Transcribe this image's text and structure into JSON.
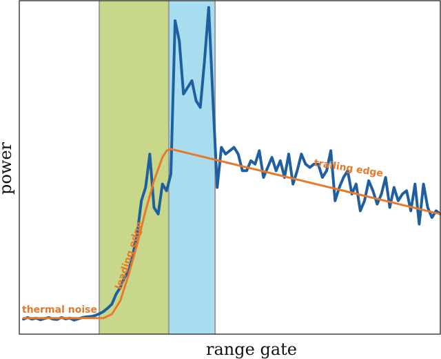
{
  "chart_data": {
    "type": "line",
    "title": "",
    "xlabel": "range gate",
    "ylabel": "power",
    "xlim": [
      0,
      100
    ],
    "ylim": [
      0,
      100
    ],
    "grid": false,
    "ticks": false,
    "bands": [
      {
        "name": "leading-edge-band",
        "x0": 19,
        "x1": 35.5,
        "color": "#c8d88a"
      },
      {
        "name": "peak-band",
        "x0": 35.5,
        "x1": 46.5,
        "color": "#a8dcef"
      }
    ],
    "band_edge_color": "#9a9a9a",
    "series": [
      {
        "name": "waveform",
        "color": "#1f5fa0",
        "x": [
          1,
          2,
          3,
          4,
          5,
          6,
          7,
          8,
          9,
          10,
          11,
          12,
          13,
          14,
          15,
          16,
          17,
          18,
          19,
          20,
          21,
          22,
          23,
          24,
          25,
          26,
          27,
          28,
          29,
          30,
          31,
          32,
          33,
          34,
          35,
          36,
          37,
          38,
          39,
          40,
          41,
          42,
          43,
          44,
          45,
          46,
          47,
          48,
          49,
          50,
          51,
          52,
          53,
          54,
          55,
          56,
          57,
          58,
          59,
          60,
          61,
          62,
          63,
          64,
          65,
          66,
          67,
          68,
          69,
          70,
          71,
          72,
          73,
          74,
          75,
          76,
          77,
          78,
          79,
          80,
          81,
          82,
          83,
          84,
          85,
          86,
          87,
          88,
          89,
          90,
          91,
          92,
          93,
          94,
          95,
          96,
          97,
          98,
          99,
          100
        ],
        "y": [
          4.5,
          5,
          4.5,
          4.8,
          4.3,
          4.7,
          5,
          4.5,
          4.4,
          5,
          4.6,
          4.8,
          4.2,
          4.6,
          5,
          5.2,
          5.3,
          5.6,
          6.1,
          6.8,
          7.8,
          9,
          12,
          14,
          17,
          19,
          24,
          30,
          40,
          44,
          54,
          38,
          36,
          45,
          43,
          48,
          94,
          88,
          72,
          74,
          76,
          70,
          68,
          82,
          98,
          70,
          44,
          56,
          54,
          55,
          56,
          54,
          49,
          49,
          52,
          51,
          55,
          47,
          50,
          53,
          49,
          52,
          47,
          54,
          45,
          49,
          54,
          51,
          50,
          51,
          51,
          47,
          49,
          55,
          40,
          44,
          47,
          49,
          42,
          45,
          37,
          40,
          46,
          43,
          39,
          42,
          47,
          38,
          44,
          40,
          42,
          43,
          37,
          45,
          33,
          45,
          38,
          35,
          37,
          36
        ]
      },
      {
        "name": "model-fit",
        "color": "#e8792b",
        "x": [
          1,
          20,
          22,
          24,
          26,
          28,
          30,
          32,
          34,
          35,
          36,
          100
        ],
        "y": [
          4.8,
          4.8,
          6,
          10,
          18,
          27,
          37,
          46,
          53,
          55,
          55.5,
          36
        ]
      }
    ],
    "annotations": {
      "thermal_noise": "thermal noise",
      "leading_edge": "leading edge",
      "trailing_edge": "trailing edge"
    }
  }
}
